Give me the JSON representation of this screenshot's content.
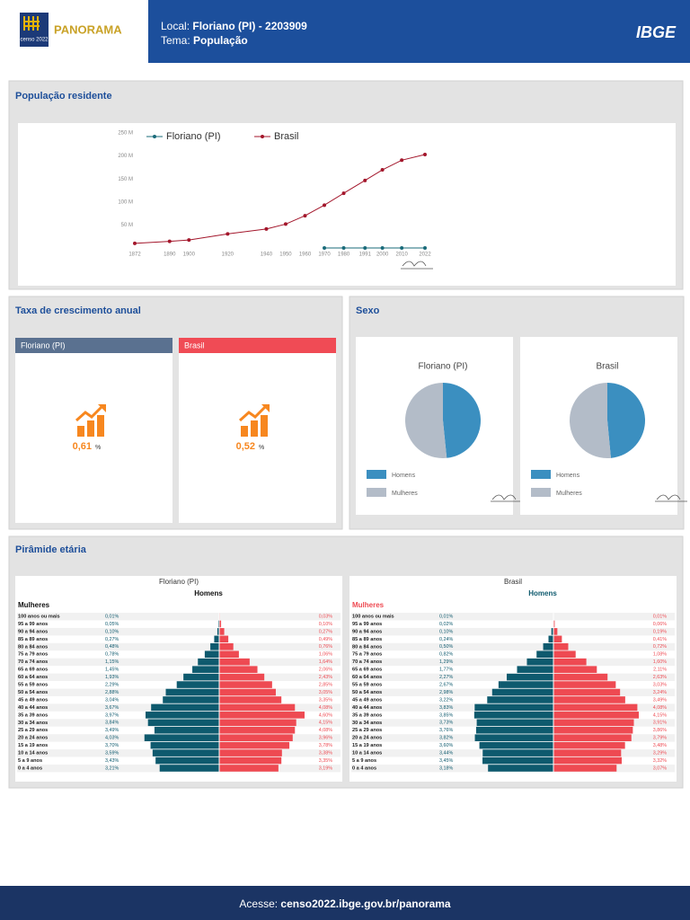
{
  "header": {
    "logo_caption": "censo 2022",
    "brand": "PANORAMA",
    "location_label": "Local:",
    "location": "Floriano (PI) - 2203909",
    "theme_label": "Tema:",
    "theme": "População",
    "agency": "IBGE"
  },
  "sections": {
    "population": "População residente",
    "growth": "Taxa de crescimento anual",
    "sex": "Sexo",
    "pyramid": "Pirâmide etária"
  },
  "growth": [
    {
      "name": "Floriano (PI)",
      "value": "0,61",
      "unit": "%",
      "color": "#5a7190"
    },
    {
      "name": "Brasil",
      "value": "0,52",
      "unit": "%",
      "color": "#f04b55"
    }
  ],
  "chart_data": [
    {
      "type": "line",
      "x": [
        1872,
        1890,
        1900,
        1920,
        1940,
        1950,
        1960,
        1970,
        1980,
        1991,
        2000,
        2010,
        2022
      ],
      "series": [
        {
          "name": "Floriano (PI)",
          "color": "#1a6b7a",
          "values": [
            null,
            null,
            null,
            null,
            null,
            null,
            null,
            0.04,
            0.045,
            0.05,
            0.055,
            0.058,
            0.059
          ]
        },
        {
          "name": "Brasil",
          "color": "#a3162b",
          "values": [
            9.9,
            14.3,
            17.4,
            30.6,
            41.2,
            51.9,
            70.1,
            93.1,
            119,
            146.8,
            169.8,
            190.8,
            203.1
          ]
        }
      ],
      "xlim": [
        1872,
        2022
      ],
      "xticks": [
        1872,
        1890,
        1900,
        1920,
        1940,
        1950,
        1960,
        1970,
        1980,
        1991,
        2000,
        2010,
        2022
      ],
      "ylim": [
        0,
        250
      ],
      "yticks": [
        {
          "value": 50,
          "label": "50 M"
        },
        {
          "value": 100,
          "label": "100 M"
        },
        {
          "value": 150,
          "label": "150 M"
        },
        {
          "value": 200,
          "label": "200 M"
        },
        {
          "value": 250,
          "label": "250 M"
        }
      ],
      "grid": false
    },
    {
      "type": "pie",
      "title": "Floriano (PI)",
      "categories": [
        "Homens",
        "Mulheres"
      ],
      "values": [
        48.4,
        51.6
      ],
      "colors": [
        "#3b8fc0",
        "#b3bcc8"
      ]
    },
    {
      "type": "pie",
      "title": "Brasil",
      "categories": [
        "Homens",
        "Mulheres"
      ],
      "values": [
        48.5,
        51.5
      ],
      "colors": [
        "#3b8fc0",
        "#b3bcc8"
      ]
    },
    {
      "type": "pyramid",
      "title": "Floriano (PI)",
      "colored_headings": false,
      "categories": [
        "100 anos ou mais",
        "95 a 99 anos",
        "90 a 94 anos",
        "85 a 89 anos",
        "80 a 84 anos",
        "75 a 79 anos",
        "70 a 74 anos",
        "65 a 69 anos",
        "60 a 64 anos",
        "55 a 59 anos",
        "50 a 54 anos",
        "45 a 49 anos",
        "40 a 44 anos",
        "35 a 39 anos",
        "30 a 34 anos",
        "25 a 29 anos",
        "20 a 24 anos",
        "15 a 19 anos",
        "10 a 14 anos",
        "5 a 9 anos",
        "0 a 4 anos"
      ],
      "series": [
        {
          "name": "Homens",
          "color": "#0e5a6e",
          "values": [
            0.01,
            0.05,
            0.1,
            0.27,
            0.48,
            0.78,
            1.15,
            1.45,
            1.93,
            2.29,
            2.88,
            3.04,
            3.67,
            3.97,
            3.84,
            3.49,
            4.03,
            3.7,
            3.59,
            3.43,
            3.21
          ],
          "value_labels": [
            "0,01%",
            "0,05%",
            "0,10%",
            "0,27%",
            "0,48%",
            "0,78%",
            "1,15%",
            "1,45%",
            "1,93%",
            "2,29%",
            "2,88%",
            "3,04%",
            "3,67%",
            "3,97%",
            "3,84%",
            "3,49%",
            "4,03%",
            "3,70%",
            "3,59%",
            "3,43%",
            "3,21%"
          ]
        },
        {
          "name": "Mulheres",
          "color": "#ee4a52",
          "values": [
            0.03,
            0.1,
            0.27,
            0.49,
            0.76,
            1.06,
            1.64,
            2.06,
            2.43,
            2.85,
            3.05,
            3.35,
            4.08,
            4.6,
            4.15,
            4.08,
            3.96,
            3.78,
            3.38,
            3.35,
            3.19
          ],
          "value_labels": [
            "0,03%",
            "0,10%",
            "0,27%",
            "0,49%",
            "0,76%",
            "1,06%",
            "1,64%",
            "2,06%",
            "2,43%",
            "2,85%",
            "3,05%",
            "3,35%",
            "4,08%",
            "4,60%",
            "4,15%",
            "4,08%",
            "3,96%",
            "3,78%",
            "3,38%",
            "3,35%",
            "3,19%"
          ]
        }
      ]
    },
    {
      "type": "pyramid",
      "title": "Brasil",
      "colored_headings": true,
      "categories": [
        "100 anos ou mais",
        "95 a 99 anos",
        "90 a 94 anos",
        "85 a 89 anos",
        "80 a 84 anos",
        "75 a 79 anos",
        "70 a 74 anos",
        "65 a 69 anos",
        "60 a 64 anos",
        "55 a 59 anos",
        "50 a 54 anos",
        "45 a 49 anos",
        "40 a 44 anos",
        "35 a 39 anos",
        "30 a 34 anos",
        "25 a 29 anos",
        "20 a 24 anos",
        "15 a 19 anos",
        "10 a 14 anos",
        "5 a 9 anos",
        "0 a 4 anos"
      ],
      "series": [
        {
          "name": "Homens",
          "color": "#0e5a6e",
          "values": [
            0.01,
            0.02,
            0.1,
            0.24,
            0.5,
            0.82,
            1.29,
            1.77,
            2.27,
            2.67,
            2.98,
            3.22,
            3.83,
            3.85,
            3.73,
            3.76,
            3.82,
            3.6,
            3.44,
            3.45,
            3.18
          ],
          "value_labels": [
            "0,01%",
            "0,02%",
            "0,10%",
            "0,24%",
            "0,50%",
            "0,82%",
            "1,29%",
            "1,77%",
            "2,27%",
            "2,67%",
            "2,98%",
            "3,22%",
            "3,83%",
            "3,85%",
            "3,73%",
            "3,76%",
            "3,82%",
            "3,60%",
            "3,44%",
            "3,45%",
            "3,18%"
          ]
        },
        {
          "name": "Mulheres",
          "color": "#ee4a52",
          "values": [
            0.01,
            0.06,
            0.19,
            0.41,
            0.72,
            1.08,
            1.6,
            2.11,
            2.63,
            3.03,
            3.24,
            3.49,
            4.08,
            4.15,
            3.91,
            3.86,
            3.79,
            3.48,
            3.29,
            3.32,
            3.07
          ],
          "value_labels": [
            "0,01%",
            "0,06%",
            "0,19%",
            "0,41%",
            "0,72%",
            "1,08%",
            "1,60%",
            "2,11%",
            "2,63%",
            "3,03%",
            "3,24%",
            "3,49%",
            "4,08%",
            "4,15%",
            "3,91%",
            "3,86%",
            "3,79%",
            "3,48%",
            "3,29%",
            "3,32%",
            "3,07%"
          ]
        }
      ]
    }
  ],
  "footer": {
    "label": "Acesse:",
    "url": "censo2022.ibge.gov.br/panorama"
  }
}
